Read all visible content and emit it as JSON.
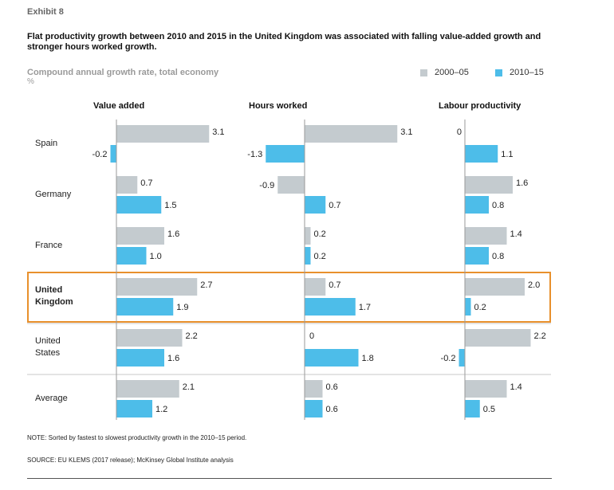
{
  "exhibit_label": "Exhibit 8",
  "title": "Flat productivity growth between 2010 and 2015 in the United Kingdom was associated with falling value-added growth and stronger hours worked growth.",
  "subtitle": "Compound annual growth rate, total economy",
  "unit": "%",
  "legend": [
    {
      "label": "2000–05",
      "color": "#c4cbcf"
    },
    {
      "label": "2010–15",
      "color": "#4dbde9"
    }
  ],
  "note": "NOTE: Sorted by fastest to slowest productivity growth in the 2010–15 period.",
  "source": "SOURCE:  EU KLEMS (2017 release); McKinsey Global Institute analysis",
  "highlight_color": "#e8902c",
  "chart_data": {
    "type": "bar",
    "orientation": "horizontal",
    "title": "Flat productivity growth between 2010 and 2015 in the United Kingdom was associated with falling value-added growth and stronger hours worked growth.",
    "categories": [
      "Spain",
      "Germany",
      "France",
      "United Kingdom",
      "United States",
      "Average"
    ],
    "category_lines": [
      [
        "Spain"
      ],
      [
        "Germany"
      ],
      [
        "France"
      ],
      [
        "United",
        "Kingdom"
      ],
      [
        "United",
        "States"
      ],
      [
        "Average"
      ]
    ],
    "highlighted_category": "United Kingdom",
    "series_names": [
      "2000–05",
      "2010–15"
    ],
    "panels": [
      {
        "name": "Value added",
        "series": [
          {
            "name": "2000–05",
            "values": [
              3.1,
              0.7,
              1.6,
              2.7,
              2.2,
              2.1
            ],
            "labels": [
              "3.1",
              "0.7",
              "1.6",
              "2.7",
              "2.2",
              "2.1"
            ]
          },
          {
            "name": "2010–15",
            "values": [
              -0.2,
              1.5,
              1.0,
              1.9,
              1.6,
              1.2
            ],
            "labels": [
              "-0.2",
              "1.5",
              "1.0",
              "1.9",
              "1.6",
              "1.2"
            ]
          }
        ]
      },
      {
        "name": "Hours worked",
        "series": [
          {
            "name": "2000–05",
            "values": [
              3.1,
              -0.9,
              0.2,
              0.7,
              0,
              0.6
            ],
            "labels": [
              "3.1",
              "-0.9",
              "0.2",
              "0.7",
              "0",
              "0.6"
            ]
          },
          {
            "name": "2010–15",
            "values": [
              -1.3,
              0.7,
              0.2,
              1.7,
              1.8,
              0.6
            ],
            "labels": [
              "-1.3",
              "0.7",
              "0.2",
              "1.7",
              "1.8",
              "0.6"
            ]
          }
        ]
      },
      {
        "name": "Labour productivity",
        "series": [
          {
            "name": "2000–05",
            "values": [
              0,
              1.6,
              1.4,
              2.0,
              2.2,
              1.4
            ],
            "labels": [
              "0",
              "1.6",
              "1.4",
              "2.0",
              "2.2",
              "1.4"
            ]
          },
          {
            "name": "2010–15",
            "values": [
              1.1,
              0.8,
              0.8,
              0.2,
              -0.2,
              0.5
            ],
            "labels": [
              "1.1",
              "0.8",
              "0.8",
              "0.2",
              "-0.2",
              "0.5"
            ]
          }
        ]
      }
    ]
  }
}
